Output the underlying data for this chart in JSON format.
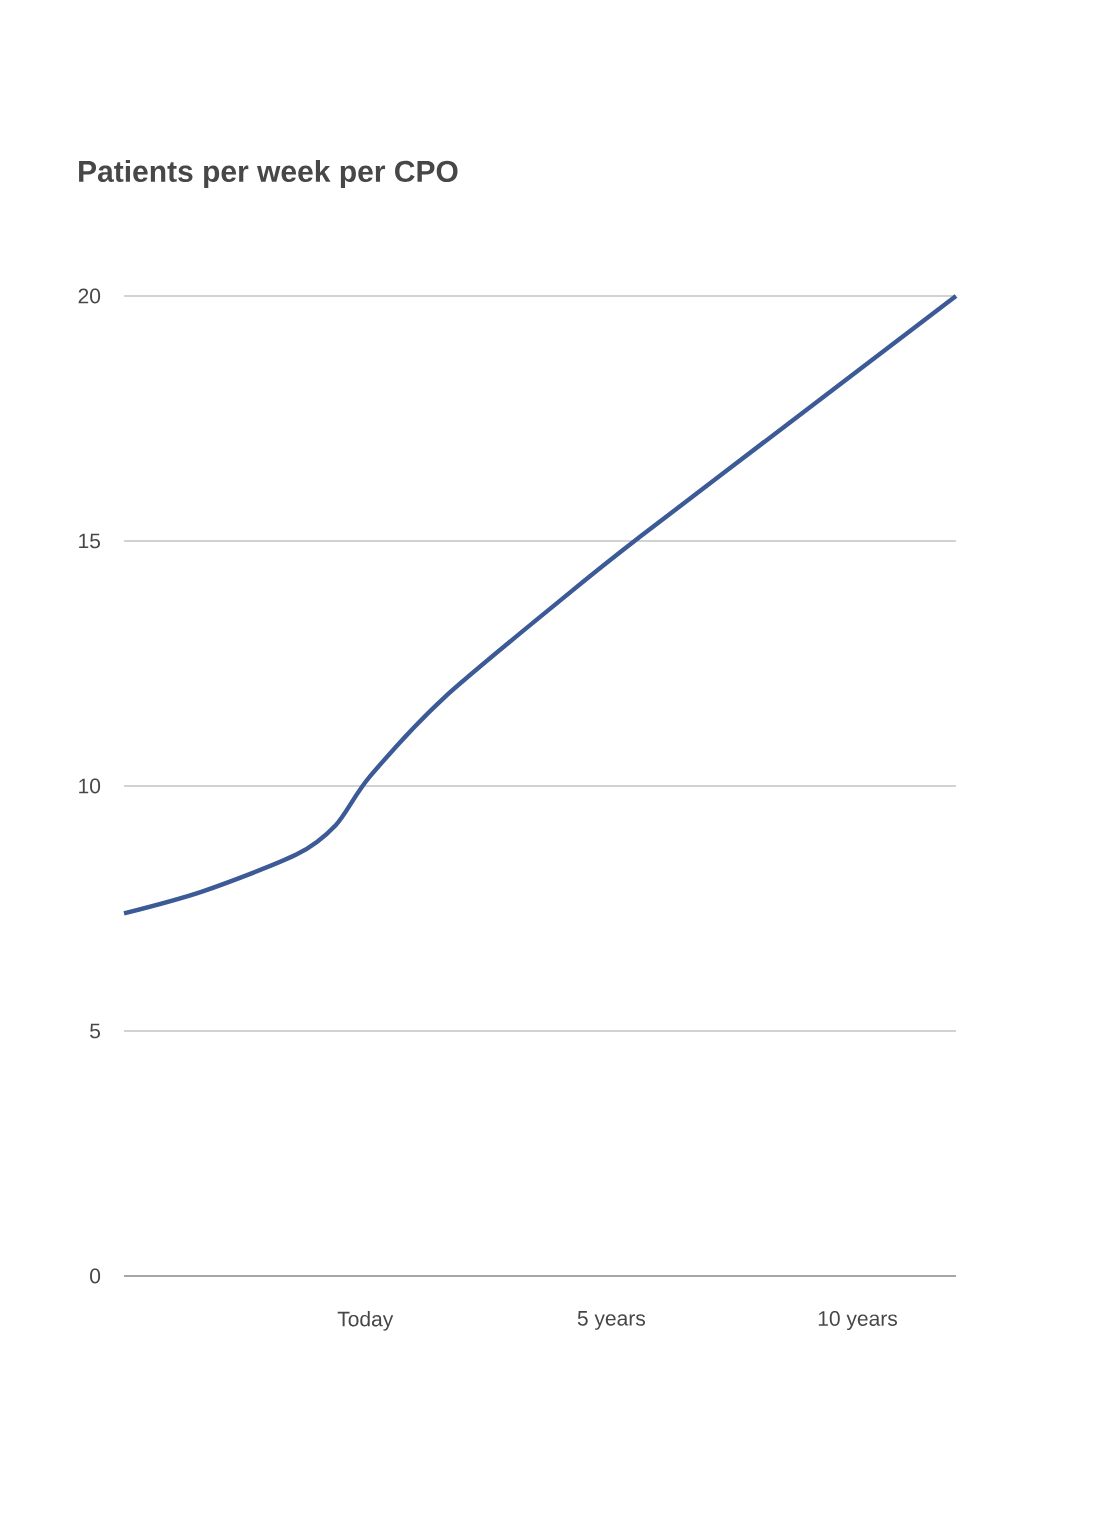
{
  "chart_data": {
    "type": "line",
    "title": "Patients per week per CPO",
    "x": [
      -4.9,
      -3.3,
      -1.4,
      -0.6,
      0.1,
      1.6,
      4.1,
      5.6,
      8.6,
      12.0
    ],
    "series": [
      {
        "color": "#3c5a96",
        "values": [
          7.4,
          7.85,
          8.6,
          9.2,
          10.2,
          11.8,
          13.9,
          15.1,
          17.4,
          20
        ]
      }
    ],
    "xlim": [
      -4.9,
      12.0
    ],
    "xticks": [
      {
        "value": 0,
        "label": "Today"
      },
      {
        "value": 5,
        "label": "5 years"
      },
      {
        "value": 10,
        "label": "10 years"
      }
    ],
    "ylim": [
      0,
      20
    ],
    "yticks": [
      0,
      5,
      10,
      15,
      20
    ],
    "grid": "y",
    "line_style": "solid",
    "marker": "none"
  }
}
